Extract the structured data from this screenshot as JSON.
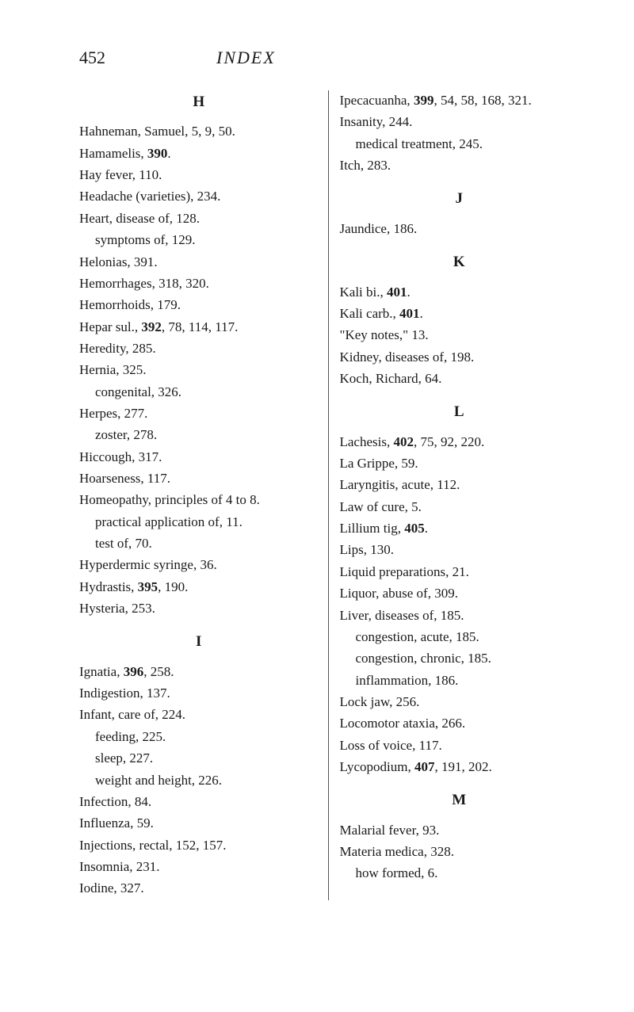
{
  "header": {
    "page_number": "452",
    "title": "INDEX"
  },
  "left_column": {
    "sections": [
      {
        "letter": "H",
        "entries": [
          {
            "text": "Hahneman, Samuel, 5, 9, 50.",
            "sub": false
          },
          {
            "text": "Hamamelis, 390.",
            "boldPart": "390",
            "sub": false
          },
          {
            "text": "Hay fever, 110.",
            "sub": false
          },
          {
            "text": "Headache (varieties), 234.",
            "sub": false
          },
          {
            "text": "Heart, disease of, 128.",
            "sub": false
          },
          {
            "text": "symptoms of, 129.",
            "sub": true
          },
          {
            "text": "Helonias, 391.",
            "sub": false
          },
          {
            "text": "Hemorrhages, 318, 320.",
            "sub": false
          },
          {
            "text": "Hemorrhoids, 179.",
            "sub": false
          },
          {
            "text": "Hepar sul., 392, 78, 114, 117.",
            "boldPart": "392",
            "sub": false
          },
          {
            "text": "Heredity, 285.",
            "sub": false
          },
          {
            "text": "Hernia, 325.",
            "sub": false
          },
          {
            "text": "congenital, 326.",
            "sub": true
          },
          {
            "text": "Herpes, 277.",
            "sub": false
          },
          {
            "text": "zoster, 278.",
            "sub": true
          },
          {
            "text": "Hiccough, 317.",
            "sub": false
          },
          {
            "text": "Hoarseness, 117.",
            "sub": false
          },
          {
            "text": "Homeopathy, principles of 4 to 8.",
            "sub": false
          },
          {
            "text": "practical application of, 11.",
            "sub": true
          },
          {
            "text": "test of, 70.",
            "sub": true
          },
          {
            "text": "Hyperdermic syringe, 36.",
            "sub": false
          },
          {
            "text": "Hydrastis, 395, 190.",
            "boldPart": "395",
            "sub": false
          },
          {
            "text": "Hysteria, 253.",
            "sub": false
          }
        ]
      },
      {
        "letter": "I",
        "entries": [
          {
            "text": "Ignatia, 396, 258.",
            "boldPart": "396",
            "sub": false
          },
          {
            "text": "Indigestion, 137.",
            "sub": false
          },
          {
            "text": "Infant, care of, 224.",
            "sub": false
          },
          {
            "text": "feeding, 225.",
            "sub": true
          },
          {
            "text": "sleep, 227.",
            "sub": true
          },
          {
            "text": "weight and height, 226.",
            "sub": true
          },
          {
            "text": "Infection, 84.",
            "sub": false
          },
          {
            "text": "Influenza, 59.",
            "sub": false
          },
          {
            "text": "Injections, rectal, 152, 157.",
            "sub": false
          },
          {
            "text": "Insomnia, 231.",
            "sub": false
          },
          {
            "text": "Iodine, 327.",
            "sub": false
          }
        ]
      }
    ]
  },
  "right_column": {
    "sections": [
      {
        "letter": "",
        "entries": [
          {
            "text": "Ipecacuanha, 399, 54, 58, 168, 321.",
            "boldPart": "399",
            "sub": false
          },
          {
            "text": "Insanity, 244.",
            "sub": false
          },
          {
            "text": "medical treatment, 245.",
            "sub": true
          },
          {
            "text": "Itch, 283.",
            "sub": false
          }
        ]
      },
      {
        "letter": "J",
        "entries": [
          {
            "text": "Jaundice, 186.",
            "sub": false
          }
        ]
      },
      {
        "letter": "K",
        "entries": [
          {
            "text": "Kali bi., 401.",
            "boldPart": "401",
            "sub": false
          },
          {
            "text": "Kali carb., 401.",
            "boldPart": "401",
            "sub": false
          },
          {
            "text": "\"Key notes,\" 13.",
            "sub": false
          },
          {
            "text": "Kidney, diseases of, 198.",
            "sub": false
          },
          {
            "text": "Koch, Richard, 64.",
            "sub": false
          }
        ]
      },
      {
        "letter": "L",
        "entries": [
          {
            "text": "Lachesis, 402, 75, 92, 220.",
            "boldPart": "402",
            "sub": false
          },
          {
            "text": "La Grippe, 59.",
            "sub": false
          },
          {
            "text": "Laryngitis, acute, 112.",
            "sub": false
          },
          {
            "text": "Law of cure, 5.",
            "sub": false
          },
          {
            "text": "Lillium tig, 405.",
            "boldPart": "405",
            "sub": false
          },
          {
            "text": "Lips, 130.",
            "sub": false
          },
          {
            "text": "Liquid preparations, 21.",
            "sub": false
          },
          {
            "text": "Liquor, abuse of, 309.",
            "sub": false
          },
          {
            "text": "Liver, diseases of, 185.",
            "sub": false
          },
          {
            "text": "congestion, acute, 185.",
            "sub": true
          },
          {
            "text": "congestion, chronic, 185.",
            "sub": true
          },
          {
            "text": "inflammation, 186.",
            "sub": true
          },
          {
            "text": "Lock jaw, 256.",
            "sub": false
          },
          {
            "text": "Locomotor ataxia, 266.",
            "sub": false
          },
          {
            "text": "Loss of voice, 117.",
            "sub": false
          },
          {
            "text": "Lycopodium, 407, 191, 202.",
            "boldPart": "407",
            "sub": false
          }
        ]
      },
      {
        "letter": "M",
        "entries": [
          {
            "text": "Malarial fever, 93.",
            "sub": false
          },
          {
            "text": "Materia medica, 328.",
            "sub": false
          },
          {
            "text": "how formed, 6.",
            "sub": true
          }
        ]
      }
    ]
  }
}
